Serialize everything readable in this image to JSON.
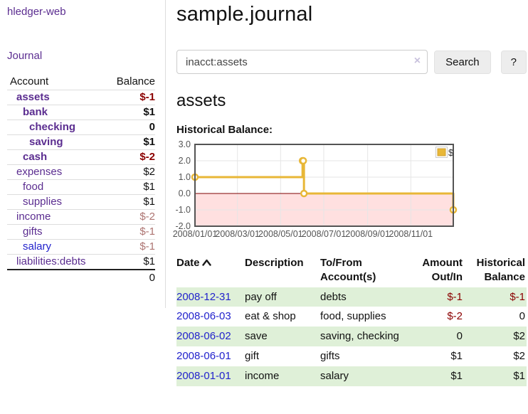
{
  "app": {
    "brand": "hledger-web",
    "nav_journal": "Journal"
  },
  "colors": {
    "link_purple": "#5b2d90",
    "link_blue": "#2222cc",
    "negative": "#8b0000",
    "negative_dim": "#ad7471",
    "row_green": "#dff0d8",
    "series_yellow": "#e8b737"
  },
  "sidebar": {
    "accounts_header": {
      "account": "Account",
      "balance": "Balance"
    },
    "accounts": [
      {
        "name": "assets",
        "depth": 1,
        "balance": "$-1",
        "bold": true,
        "negative": "strong",
        "link_color": "purple"
      },
      {
        "name": "bank",
        "depth": 2,
        "balance": "$1",
        "bold": true,
        "negative": "none",
        "link_color": "purple"
      },
      {
        "name": "checking",
        "depth": 3,
        "balance": "0",
        "bold": true,
        "negative": "none",
        "link_color": "purple"
      },
      {
        "name": "saving",
        "depth": 3,
        "balance": "$1",
        "bold": true,
        "negative": "none",
        "link_color": "purple"
      },
      {
        "name": "cash",
        "depth": 2,
        "balance": "$-2",
        "bold": true,
        "negative": "strong",
        "link_color": "purple"
      },
      {
        "name": "expenses",
        "depth": 1,
        "balance": "$2",
        "bold": false,
        "negative": "none",
        "link_color": "purple"
      },
      {
        "name": "food",
        "depth": 2,
        "balance": "$1",
        "bold": false,
        "negative": "none",
        "link_color": "purple"
      },
      {
        "name": "supplies",
        "depth": 2,
        "balance": "$1",
        "bold": false,
        "negative": "none",
        "link_color": "purple"
      },
      {
        "name": "income",
        "depth": 1,
        "balance": "$-2",
        "bold": false,
        "negative": "dim",
        "link_color": "purple"
      },
      {
        "name": "gifts",
        "depth": 2,
        "balance": "$-1",
        "bold": false,
        "negative": "dim",
        "link_color": "purple"
      },
      {
        "name": "salary",
        "depth": 2,
        "balance": "$-1",
        "bold": false,
        "negative": "dim",
        "link_color": "blue"
      },
      {
        "name": "liabilities:debts",
        "depth": 1,
        "balance": "$1",
        "bold": false,
        "negative": "none",
        "link_color": "purple"
      }
    ],
    "total": "0"
  },
  "header": {
    "title": "sample.journal"
  },
  "search": {
    "value": "inacct:assets",
    "clear_label": "×",
    "button": "Search",
    "help": "?"
  },
  "account_page": {
    "heading": "assets",
    "chart_label": "Historical Balance:"
  },
  "chart_data": {
    "type": "line",
    "step": true,
    "title": "Historical Balance",
    "series": [
      {
        "name": "$",
        "color": "#e8b737",
        "points": [
          [
            "2008-01-01",
            1
          ],
          [
            "2008-06-01",
            2
          ],
          [
            "2008-06-02",
            2
          ],
          [
            "2008-06-03",
            0
          ],
          [
            "2008-12-31",
            -1
          ]
        ]
      }
    ],
    "x_ticks": [
      "2008/01/01",
      "2008/03/01",
      "2008/05/01",
      "2008/07/01",
      "2008/09/01",
      "2008/11/01"
    ],
    "y_ticks": [
      3.0,
      2.0,
      1.0,
      0.0,
      -1.0,
      -2.0
    ],
    "ylim": [
      -2,
      3
    ],
    "xlim": [
      "2008-01-01",
      "2008-12-31"
    ],
    "legend": {
      "label": "$",
      "position": "top-right"
    },
    "grid": true,
    "negative_region_shaded": true,
    "zero_line_color": "#7d0000"
  },
  "register": {
    "columns": [
      {
        "label": "Date",
        "sort": "asc"
      },
      {
        "label": "Description"
      },
      {
        "label": "To/From Account(s)"
      },
      {
        "label": "Amount Out/In"
      },
      {
        "label": "Historical Balance"
      }
    ],
    "rows": [
      {
        "date": "2008-12-31",
        "description": "pay off",
        "accounts": "debts",
        "amount": "$-1",
        "balance": "$-1",
        "amount_negative": true,
        "balance_negative": true
      },
      {
        "date": "2008-06-03",
        "description": "eat & shop",
        "accounts": "food, supplies",
        "amount": "$-2",
        "balance": "0",
        "amount_negative": true,
        "balance_negative": false
      },
      {
        "date": "2008-06-02",
        "description": "save",
        "accounts": "saving, checking",
        "amount": "0",
        "balance": "$2",
        "amount_negative": false,
        "balance_negative": false
      },
      {
        "date": "2008-06-01",
        "description": "gift",
        "accounts": "gifts",
        "amount": "$1",
        "balance": "$2",
        "amount_negative": false,
        "balance_negative": false
      },
      {
        "date": "2008-01-01",
        "description": "income",
        "accounts": "salary",
        "amount": "$1",
        "balance": "$1",
        "amount_negative": false,
        "balance_negative": false
      }
    ]
  }
}
